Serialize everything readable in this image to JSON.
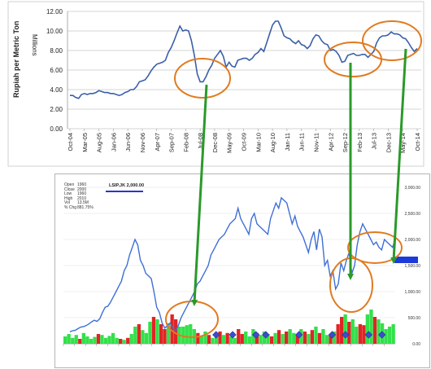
{
  "top_chart": {
    "type": "line",
    "ylabel": "Rupiah per Metric Ton",
    "yunit": "Millions",
    "ylim": [
      0,
      12
    ],
    "yticks": [
      "0.00",
      "2.00",
      "4.00",
      "6.00",
      "8.00",
      "10.00",
      "12.00"
    ],
    "xticks": [
      "Oct-04",
      "Mar-05",
      "Aug-05",
      "Jan-06",
      "Jun-06",
      "Nov-06",
      "Apr-07",
      "Sep-07",
      "Feb-08",
      "Jul-08",
      "Dec-08",
      "May-09",
      "Oct-09",
      "Mar-10",
      "Aug-10",
      "Jan-11",
      "Jun-11",
      "Nov-11",
      "Apr-12",
      "Sep-12",
      "Feb-13",
      "Jul-13",
      "Dec-13",
      "May-14",
      "Oct-14"
    ],
    "color": "#3a5fa8",
    "x": [
      0,
      1,
      2,
      3,
      4,
      5,
      6,
      7,
      8,
      9,
      10,
      11,
      12,
      13,
      14,
      15,
      16,
      17,
      18,
      19,
      20,
      21,
      22,
      23,
      24,
      25,
      26,
      27,
      28,
      29,
      30,
      31,
      32,
      33,
      34,
      35,
      36,
      37,
      38,
      39,
      40,
      41,
      42,
      43,
      44,
      45,
      46,
      47,
      48,
      49,
      50,
      51,
      52,
      53,
      54,
      55,
      56,
      57,
      58,
      59,
      60,
      61,
      62,
      63,
      64,
      65,
      66,
      67,
      68,
      69,
      70,
      71,
      72,
      73,
      74,
      75,
      76,
      77,
      78,
      79,
      80,
      81,
      82,
      83,
      84,
      85,
      86,
      87,
      88,
      89,
      90,
      91,
      92,
      93,
      94,
      95,
      96,
      97,
      98,
      99,
      100,
      101,
      102,
      103,
      104,
      105,
      106,
      107,
      108,
      109,
      110,
      111,
      112,
      113,
      114,
      115,
      116,
      117,
      118,
      119,
      120
    ],
    "values": [
      3.4,
      3.4,
      3.2,
      3.1,
      3.5,
      3.6,
      3.5,
      3.6,
      3.6,
      3.7,
      3.9,
      3.8,
      3.7,
      3.7,
      3.6,
      3.6,
      3.5,
      3.4,
      3.5,
      3.7,
      3.8,
      4.0,
      4.0,
      4.3,
      4.8,
      4.9,
      5.0,
      5.4,
      5.9,
      6.3,
      6.6,
      6.7,
      6.8,
      7.0,
      7.8,
      8.3,
      9.0,
      9.8,
      10.5,
      10.0,
      10.1,
      10.0,
      9.0,
      7.5,
      5.6,
      4.8,
      4.8,
      5.3,
      6.0,
      6.5,
      7.2,
      7.6,
      8.0,
      7.4,
      6.3,
      6.8,
      6.4,
      6.3,
      7.0,
      7.1,
      7.2,
      7.2,
      7.0,
      7.2,
      7.6,
      7.8,
      8.2,
      7.9,
      8.8,
      9.7,
      10.6,
      11.0,
      11.0,
      10.3,
      9.5,
      9.3,
      9.2,
      8.9,
      8.7,
      9.0,
      8.6,
      8.5,
      8.2,
      8.5,
      9.2,
      9.6,
      9.5,
      9.0,
      8.7,
      8.6,
      8.0,
      8.1,
      7.9,
      7.5,
      6.8,
      6.9,
      7.5,
      7.6,
      7.7,
      7.5,
      7.5,
      7.6,
      7.6,
      7.3,
      7.6,
      7.9,
      8.8,
      9.3,
      9.5,
      9.5,
      9.6,
      9.9,
      9.7,
      9.7,
      9.6,
      9.3,
      9.2,
      8.8,
      8.3,
      7.9,
      8.2
    ]
  },
  "bottom_chart": {
    "type": "line",
    "title": "LSIP.JK 2,000.00",
    "stats": [
      {
        "k": "Open",
        "v": "1960"
      },
      {
        "k": "Close",
        "v": "2000"
      },
      {
        "k": "Low",
        "v": "1960"
      },
      {
        "k": "High",
        "v": "2010"
      },
      {
        "k": "Vol",
        "v": "13.5M"
      },
      {
        "k": "% Chg",
        "v": "881.75%"
      }
    ],
    "ylim": [
      0,
      3000
    ],
    "yticks": [
      "0.00",
      "500.00",
      "1,000.00",
      "1,500.00",
      "2,000.00",
      "2,500.00",
      "3,000.00"
    ],
    "line_color": "#3f6fd6",
    "last_value_color": "#1e3ad9",
    "x": [
      0,
      1,
      2,
      3,
      4,
      5,
      6,
      7,
      8,
      9,
      10,
      11,
      12,
      13,
      14,
      15,
      16,
      17,
      18,
      19,
      20,
      21,
      22,
      23,
      24,
      25,
      26,
      27,
      28,
      29,
      30,
      31,
      32,
      33,
      34,
      35,
      36,
      37,
      38,
      39,
      40,
      41,
      42,
      43,
      44,
      45,
      46,
      47,
      48,
      49,
      50,
      51,
      52,
      53,
      54,
      55,
      56,
      57,
      58,
      59,
      60,
      61,
      62,
      63,
      64,
      65,
      66,
      67,
      68,
      69,
      70,
      71,
      72,
      73,
      74,
      75,
      76,
      77,
      78,
      79,
      80,
      81,
      82,
      83,
      84,
      85,
      86,
      87,
      88,
      89,
      90,
      91,
      92,
      93,
      94,
      95,
      96,
      97,
      98,
      99,
      100,
      101,
      102,
      103,
      104,
      105,
      106,
      107,
      108,
      109,
      110,
      111,
      112,
      113,
      114,
      115,
      116,
      117,
      118,
      119,
      120
    ],
    "values": [
      230,
      250,
      260,
      290,
      320,
      330,
      350,
      380,
      420,
      450,
      430,
      480,
      600,
      700,
      720,
      800,
      900,
      1000,
      1100,
      1200,
      1400,
      1500,
      1700,
      1850,
      2000,
      1900,
      1600,
      1500,
      1350,
      1300,
      1250,
      1000,
      700,
      600,
      400,
      300,
      350,
      400,
      300,
      250,
      350,
      500,
      600,
      700,
      800,
      900,
      1000,
      1150,
      1200,
      1300,
      1400,
      1500,
      1700,
      1800,
      1900,
      2000,
      2050,
      2100,
      2200,
      2300,
      2350,
      2400,
      2600,
      2400,
      2300,
      2200,
      2100,
      2400,
      2500,
      2300,
      2250,
      2200,
      2150,
      2100,
      2400,
      2550,
      2700,
      2600,
      2800,
      2750,
      2700,
      2500,
      2300,
      2450,
      2250,
      2150,
      2050,
      1900,
      1750,
      2000,
      2150,
      1800,
      2200,
      2050,
      1500,
      1600,
      1300,
      1400,
      1050,
      1150,
      1550,
      1400,
      1600,
      1750,
      1350,
      1500,
      1900,
      2150,
      2300,
      2200,
      2100,
      2000,
      1900,
      1950,
      1850,
      1800,
      2000,
      1950,
      1900,
      1850,
      2000
    ],
    "bar_colors": {
      "up": "#33e04a",
      "down": "#e02424"
    },
    "volume": [
      {
        "v": 0.15,
        "d": 0
      },
      {
        "v": 0.2,
        "d": 0
      },
      {
        "v": 0.12,
        "d": 0
      },
      {
        "v": 0.18,
        "d": 0
      },
      {
        "v": 0.1,
        "d": 1
      },
      {
        "v": 0.22,
        "d": 0
      },
      {
        "v": 0.15,
        "d": 0
      },
      {
        "v": 0.1,
        "d": 0
      },
      {
        "v": 0.14,
        "d": 0
      },
      {
        "v": 0.2,
        "d": 1
      },
      {
        "v": 0.18,
        "d": 0
      },
      {
        "v": 0.12,
        "d": 0
      },
      {
        "v": 0.16,
        "d": 0
      },
      {
        "v": 0.22,
        "d": 0
      },
      {
        "v": 0.12,
        "d": 0
      },
      {
        "v": 0.1,
        "d": 1
      },
      {
        "v": 0.08,
        "d": 0
      },
      {
        "v": 0.12,
        "d": 1
      },
      {
        "v": 0.2,
        "d": 0
      },
      {
        "v": 0.35,
        "d": 0
      },
      {
        "v": 0.4,
        "d": 1
      },
      {
        "v": 0.28,
        "d": 0
      },
      {
        "v": 0.22,
        "d": 0
      },
      {
        "v": 0.45,
        "d": 0
      },
      {
        "v": 0.55,
        "d": 1
      },
      {
        "v": 0.5,
        "d": 0
      },
      {
        "v": 0.4,
        "d": 1
      },
      {
        "v": 0.3,
        "d": 1
      },
      {
        "v": 0.42,
        "d": 0
      },
      {
        "v": 0.6,
        "d": 1
      },
      {
        "v": 0.5,
        "d": 1
      },
      {
        "v": 0.35,
        "d": 0
      },
      {
        "v": 0.35,
        "d": 0
      },
      {
        "v": 0.38,
        "d": 0
      },
      {
        "v": 0.4,
        "d": 0
      },
      {
        "v": 0.3,
        "d": 0
      },
      {
        "v": 0.22,
        "d": 1
      },
      {
        "v": 0.15,
        "d": 0
      },
      {
        "v": 0.25,
        "d": 0
      },
      {
        "v": 0.18,
        "d": 1
      },
      {
        "v": 0.12,
        "d": 0
      },
      {
        "v": 0.2,
        "d": 0
      },
      {
        "v": 0.25,
        "d": 1
      },
      {
        "v": 0.18,
        "d": 0
      },
      {
        "v": 0.22,
        "d": 1
      },
      {
        "v": 0.15,
        "d": 0
      },
      {
        "v": 0.12,
        "d": 0
      },
      {
        "v": 0.3,
        "d": 1
      },
      {
        "v": 0.2,
        "d": 1
      },
      {
        "v": 0.25,
        "d": 0
      },
      {
        "v": 0.15,
        "d": 0
      },
      {
        "v": 0.3,
        "d": 0
      },
      {
        "v": 0.22,
        "d": 1
      },
      {
        "v": 0.18,
        "d": 0
      },
      {
        "v": 0.25,
        "d": 0
      },
      {
        "v": 0.2,
        "d": 0
      },
      {
        "v": 0.15,
        "d": 1
      },
      {
        "v": 0.22,
        "d": 0
      },
      {
        "v": 0.28,
        "d": 1
      },
      {
        "v": 0.2,
        "d": 0
      },
      {
        "v": 0.25,
        "d": 1
      },
      {
        "v": 0.3,
        "d": 0
      },
      {
        "v": 0.22,
        "d": 0
      },
      {
        "v": 0.18,
        "d": 1
      },
      {
        "v": 0.3,
        "d": 0
      },
      {
        "v": 0.25,
        "d": 1
      },
      {
        "v": 0.2,
        "d": 0
      },
      {
        "v": 0.28,
        "d": 1
      },
      {
        "v": 0.35,
        "d": 0
      },
      {
        "v": 0.22,
        "d": 1
      },
      {
        "v": 0.3,
        "d": 0
      },
      {
        "v": 0.18,
        "d": 0
      },
      {
        "v": 0.2,
        "d": 1
      },
      {
        "v": 0.25,
        "d": 0
      },
      {
        "v": 0.4,
        "d": 1
      },
      {
        "v": 0.55,
        "d": 1
      },
      {
        "v": 0.6,
        "d": 0
      },
      {
        "v": 0.45,
        "d": 1
      },
      {
        "v": 0.5,
        "d": 0
      },
      {
        "v": 0.35,
        "d": 0
      },
      {
        "v": 0.4,
        "d": 1
      },
      {
        "v": 0.38,
        "d": 1
      },
      {
        "v": 0.6,
        "d": 0
      },
      {
        "v": 0.7,
        "d": 0
      },
      {
        "v": 0.55,
        "d": 1
      },
      {
        "v": 0.5,
        "d": 0
      },
      {
        "v": 0.42,
        "d": 0
      },
      {
        "v": 0.3,
        "d": 0
      },
      {
        "v": 0.35,
        "d": 0
      },
      {
        "v": 0.4,
        "d": 0
      }
    ],
    "markers": [
      0.46,
      0.51,
      0.58,
      0.61,
      0.71,
      0.81,
      0.85,
      0.92,
      0.96
    ]
  },
  "annotations": {
    "ellipse_color": "#e07b20",
    "arrow_color": "#2a9a2a"
  }
}
